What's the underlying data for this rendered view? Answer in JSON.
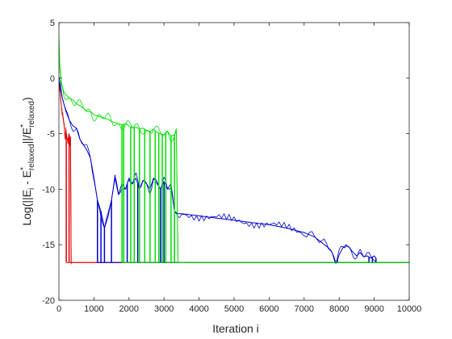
{
  "chart_data": {
    "type": "line",
    "title": "",
    "xlabel": "Iteration i",
    "ylabel_parts": {
      "pre": "Log(||E",
      "sub1": "i",
      "mid": " - E",
      "sup2": "*",
      "sub2": "relaxed",
      "mid2": "||/E",
      "sup3": "*",
      "sub3": "relaxed",
      "post": ")"
    },
    "xlim": [
      0,
      10000
    ],
    "ylim": [
      -20,
      5
    ],
    "xticks": [
      0,
      1000,
      2000,
      3000,
      4000,
      5000,
      6000,
      7000,
      8000,
      9000,
      10000
    ],
    "yticks": [
      -20,
      -15,
      -10,
      -5,
      0,
      5
    ],
    "grid": false,
    "legend": "none",
    "colors": {
      "red": "#e00000",
      "blue": "#0000d0",
      "green": "#00e000",
      "axis": "#262626"
    },
    "series": [
      {
        "color_key": "red",
        "floor": -16.6,
        "x": [
          0,
          20,
          40,
          60,
          90,
          120,
          150,
          180,
          200,
          230,
          260,
          290,
          310,
          330,
          350,
          370,
          10000
        ],
        "y": [
          -0.5,
          -1.0,
          -1.5,
          -2.2,
          -3.0,
          -3.6,
          -4.3,
          -5.4,
          -4.8,
          -5.4,
          -5.6,
          -5.1,
          -5.8,
          -5.3,
          -16.6,
          -16.6,
          -16.6
        ],
        "drops": [
          210,
          290,
          350,
          10000
        ]
      },
      {
        "color_key": "blue",
        "floor": -16.6,
        "x": [
          0,
          50,
          100,
          200,
          300,
          400,
          500,
          600,
          700,
          800,
          900,
          1000,
          1100,
          1200,
          1300,
          1400,
          1500,
          1600,
          1700,
          1800,
          1900,
          2000,
          2100,
          2200,
          2300,
          2400,
          2500,
          2600,
          2700,
          2800,
          2900,
          3000,
          3100,
          3200,
          3300,
          3400,
          3500,
          4000,
          4500,
          5000,
          5500,
          6000,
          6500,
          7000,
          7300,
          7500,
          7700,
          7800,
          7850,
          7900,
          7950,
          8000,
          8100,
          8200,
          8300,
          8400,
          8500,
          8600,
          8700,
          8800,
          8900,
          9000,
          9050
        ],
        "y": [
          -0.3,
          -1.0,
          -1.8,
          -3.0,
          -3.8,
          -4.3,
          -4.5,
          -5.5,
          -6.0,
          -6.5,
          -7.2,
          -9.0,
          -11.0,
          -12.0,
          -13.5,
          -12.5,
          -11.0,
          -9.0,
          -10.5,
          -9.5,
          -10.0,
          -9.0,
          -9.5,
          -9.0,
          -10.0,
          -9.2,
          -9.5,
          -10.0,
          -9.0,
          -9.5,
          -10.0,
          -9.3,
          -10.0,
          -9.5,
          -12.0,
          -12.2,
          -12.2,
          -12.4,
          -12.6,
          -12.8,
          -13.0,
          -13.2,
          -13.5,
          -13.9,
          -14.3,
          -14.8,
          -15.3,
          -15.7,
          -16.1,
          -16.6,
          -16.4,
          -15.9,
          -15.3,
          -15.0,
          -15.3,
          -15.7,
          -16.0,
          -15.7,
          -16.1,
          -16.0,
          -16.2,
          -16.0,
          -16.2
        ],
        "drops": [
          1100,
          1200,
          1300,
          1500,
          1850,
          1950,
          2250,
          2900,
          3000,
          3300,
          7950,
          8850,
          8950,
          9050
        ]
      },
      {
        "color_key": "green",
        "floor": -16.6,
        "x": [
          0,
          20,
          40,
          60,
          100,
          150,
          200,
          300,
          400,
          500,
          600,
          700,
          800,
          900,
          1000,
          1100,
          1200,
          1300,
          1400,
          1500,
          1600,
          1700,
          1800,
          1900,
          2000,
          2100,
          2200,
          2300,
          2400,
          2500,
          2600,
          2700,
          2800,
          2900,
          3000,
          3100,
          3200,
          3300,
          3350,
          3400,
          10000
        ],
        "y": [
          3.6,
          1.5,
          0.5,
          -0.2,
          -0.8,
          -1.3,
          -1.5,
          -1.8,
          -2.0,
          -2.3,
          -2.5,
          -2.7,
          -3.0,
          -3.0,
          -3.3,
          -3.4,
          -3.5,
          -3.6,
          -3.7,
          -3.9,
          -4.0,
          -4.1,
          -4.2,
          -4.1,
          -4.3,
          -4.5,
          -4.4,
          -4.6,
          -4.5,
          -4.7,
          -4.8,
          -4.6,
          -4.9,
          -5.0,
          -5.1,
          -4.8,
          -5.2,
          -5.1,
          -4.8,
          -16.6,
          -16.6
        ],
        "drops": [
          1800,
          1850,
          2050,
          2150,
          2300,
          2450,
          2600,
          2750,
          2850,
          2950,
          3050,
          3200,
          3300,
          3400
        ]
      }
    ]
  }
}
